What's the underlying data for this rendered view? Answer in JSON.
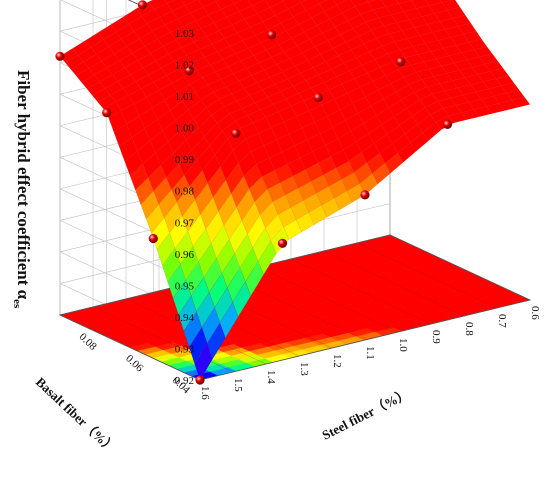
{
  "chart_data": {
    "type": "surface3d",
    "z_axis": {
      "label": "Fiber hybrid effect coefficient α",
      "label_subscript": "es",
      "ticks": [
        "0.92",
        "0.93",
        "0.94",
        "0.95",
        "0.96",
        "0.97",
        "0.98",
        "0.99",
        "1.00",
        "1.01",
        "1.02",
        "1.03"
      ],
      "range": [
        0.92,
        1.03
      ]
    },
    "x_axis": {
      "label": "Steel fiber（%）",
      "ticks": [
        "0.6",
        "0.7",
        "0.8",
        "0.9",
        "1.0",
        "1.1",
        "1.2",
        "1.3",
        "1.4",
        "1.5",
        "1.6"
      ],
      "range": [
        0.6,
        1.6
      ]
    },
    "y_axis": {
      "label": "Basalt fiber（%）",
      "ticks": [
        "0.04",
        "0.06",
        "0.08"
      ],
      "range": [
        0.04,
        0.1
      ]
    },
    "points": [
      {
        "steel": 1.6,
        "basalt": 0.1,
        "alpha": 1.002
      },
      {
        "steel": 1.35,
        "basalt": 0.1,
        "alpha": 1.012
      },
      {
        "steel": 1.1,
        "basalt": 0.1,
        "alpha": 1.018
      },
      {
        "steel": 0.85,
        "basalt": 0.1,
        "alpha": 1.023
      },
      {
        "steel": 1.6,
        "basalt": 0.08,
        "alpha": 0.991
      },
      {
        "steel": 1.35,
        "basalt": 0.08,
        "alpha": 0.998
      },
      {
        "steel": 1.1,
        "basalt": 0.08,
        "alpha": 1.003
      },
      {
        "steel": 0.85,
        "basalt": 0.08,
        "alpha": 1.01
      },
      {
        "steel": 1.6,
        "basalt": 0.06,
        "alpha": 0.958
      },
      {
        "steel": 1.35,
        "basalt": 0.06,
        "alpha": 0.985
      },
      {
        "steel": 1.1,
        "basalt": 0.06,
        "alpha": 0.99
      },
      {
        "steel": 0.85,
        "basalt": 0.06,
        "alpha": 0.995
      },
      {
        "steel": 1.6,
        "basalt": 0.04,
        "alpha": 0.92
      },
      {
        "steel": 1.35,
        "basalt": 0.04,
        "alpha": 0.957
      },
      {
        "steel": 1.1,
        "basalt": 0.04,
        "alpha": 0.966
      },
      {
        "steel": 0.85,
        "basalt": 0.04,
        "alpha": 0.982
      }
    ],
    "colormap": [
      "#7a00ff",
      "#0000ff",
      "#00aaff",
      "#00ff80",
      "#80ff00",
      "#ffff00",
      "#ff9900",
      "#ff0000"
    ],
    "color_range": [
      0.92,
      0.975
    ],
    "projection": "contour on floor"
  }
}
